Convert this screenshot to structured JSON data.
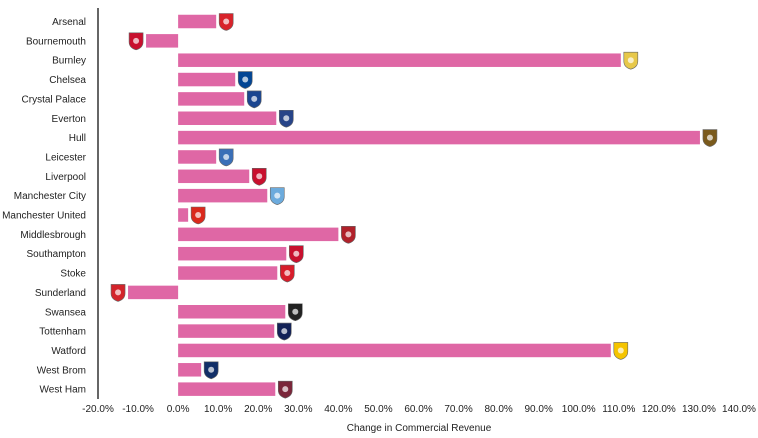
{
  "chart_data": {
    "type": "bar",
    "orientation": "horizontal",
    "title": "",
    "xlabel": "Change in Commercial Revenue",
    "ylabel": "",
    "xlim": [
      -20,
      140
    ],
    "x_ticks": [
      -20,
      -10,
      0,
      10,
      20,
      30,
      40,
      50,
      60,
      70,
      80,
      90,
      100,
      110,
      120,
      130,
      140
    ],
    "x_tick_labels": [
      "-20.0%",
      "-10.0%",
      "0.0%",
      "10.0%",
      "20.0%",
      "30.0%",
      "40.0%",
      "50.0%",
      "60.0%",
      "70.0%",
      "80.0%",
      "90.0%",
      "100.0%",
      "110.0%",
      "120.0%",
      "130.0%",
      "140.0%"
    ],
    "grid": false,
    "bar_color": "#df67a5",
    "categories": [
      "Arsenal",
      "Bournemouth",
      "Burnley",
      "Chelsea",
      "Crystal Palace",
      "Everton",
      "Hull",
      "Leicester",
      "Liverpool",
      "Manchester City",
      "Manchester United",
      "Middlesbrough",
      "Southampton",
      "Stoke",
      "Sunderland",
      "Swansea",
      "Tottenham",
      "Watford",
      "West Brom",
      "West Ham"
    ],
    "values": [
      9.5,
      -8,
      110.5,
      14.25,
      16.5,
      24.5,
      130.25,
      9.5,
      17.75,
      22.25,
      2.5,
      40,
      27,
      24.75,
      -12.5,
      26.75,
      24,
      108,
      5.75,
      24.25
    ],
    "badges": [
      {
        "icon": "arsenal-crest-icon",
        "color": "#d8232a"
      },
      {
        "icon": "bournemouth-crest-icon",
        "color": "#c8102e"
      },
      {
        "icon": "burnley-crest-icon",
        "color": "#e7c84a"
      },
      {
        "icon": "chelsea-crest-icon",
        "color": "#034694"
      },
      {
        "icon": "crystal-palace-crest-icon",
        "color": "#1b458f"
      },
      {
        "icon": "everton-crest-icon",
        "color": "#274488"
      },
      {
        "icon": "hull-crest-icon",
        "color": "#7a5a1c"
      },
      {
        "icon": "leicester-crest-icon",
        "color": "#3a6fb7"
      },
      {
        "icon": "liverpool-crest-icon",
        "color": "#c8102e"
      },
      {
        "icon": "manchester-city-crest-icon",
        "color": "#6cabdd"
      },
      {
        "icon": "manchester-united-crest-icon",
        "color": "#da291c"
      },
      {
        "icon": "middlesbrough-crest-icon",
        "color": "#b0212a"
      },
      {
        "icon": "southampton-crest-icon",
        "color": "#c8102e"
      },
      {
        "icon": "stoke-crest-icon",
        "color": "#d71d2b"
      },
      {
        "icon": "sunderland-crest-icon",
        "color": "#d3242b"
      },
      {
        "icon": "swansea-crest-icon",
        "color": "#222222"
      },
      {
        "icon": "tottenham-crest-icon",
        "color": "#132257"
      },
      {
        "icon": "watford-crest-icon",
        "color": "#f5c400"
      },
      {
        "icon": "west-brom-crest-icon",
        "color": "#122f67"
      },
      {
        "icon": "west-ham-crest-icon",
        "color": "#7a263a"
      }
    ]
  }
}
